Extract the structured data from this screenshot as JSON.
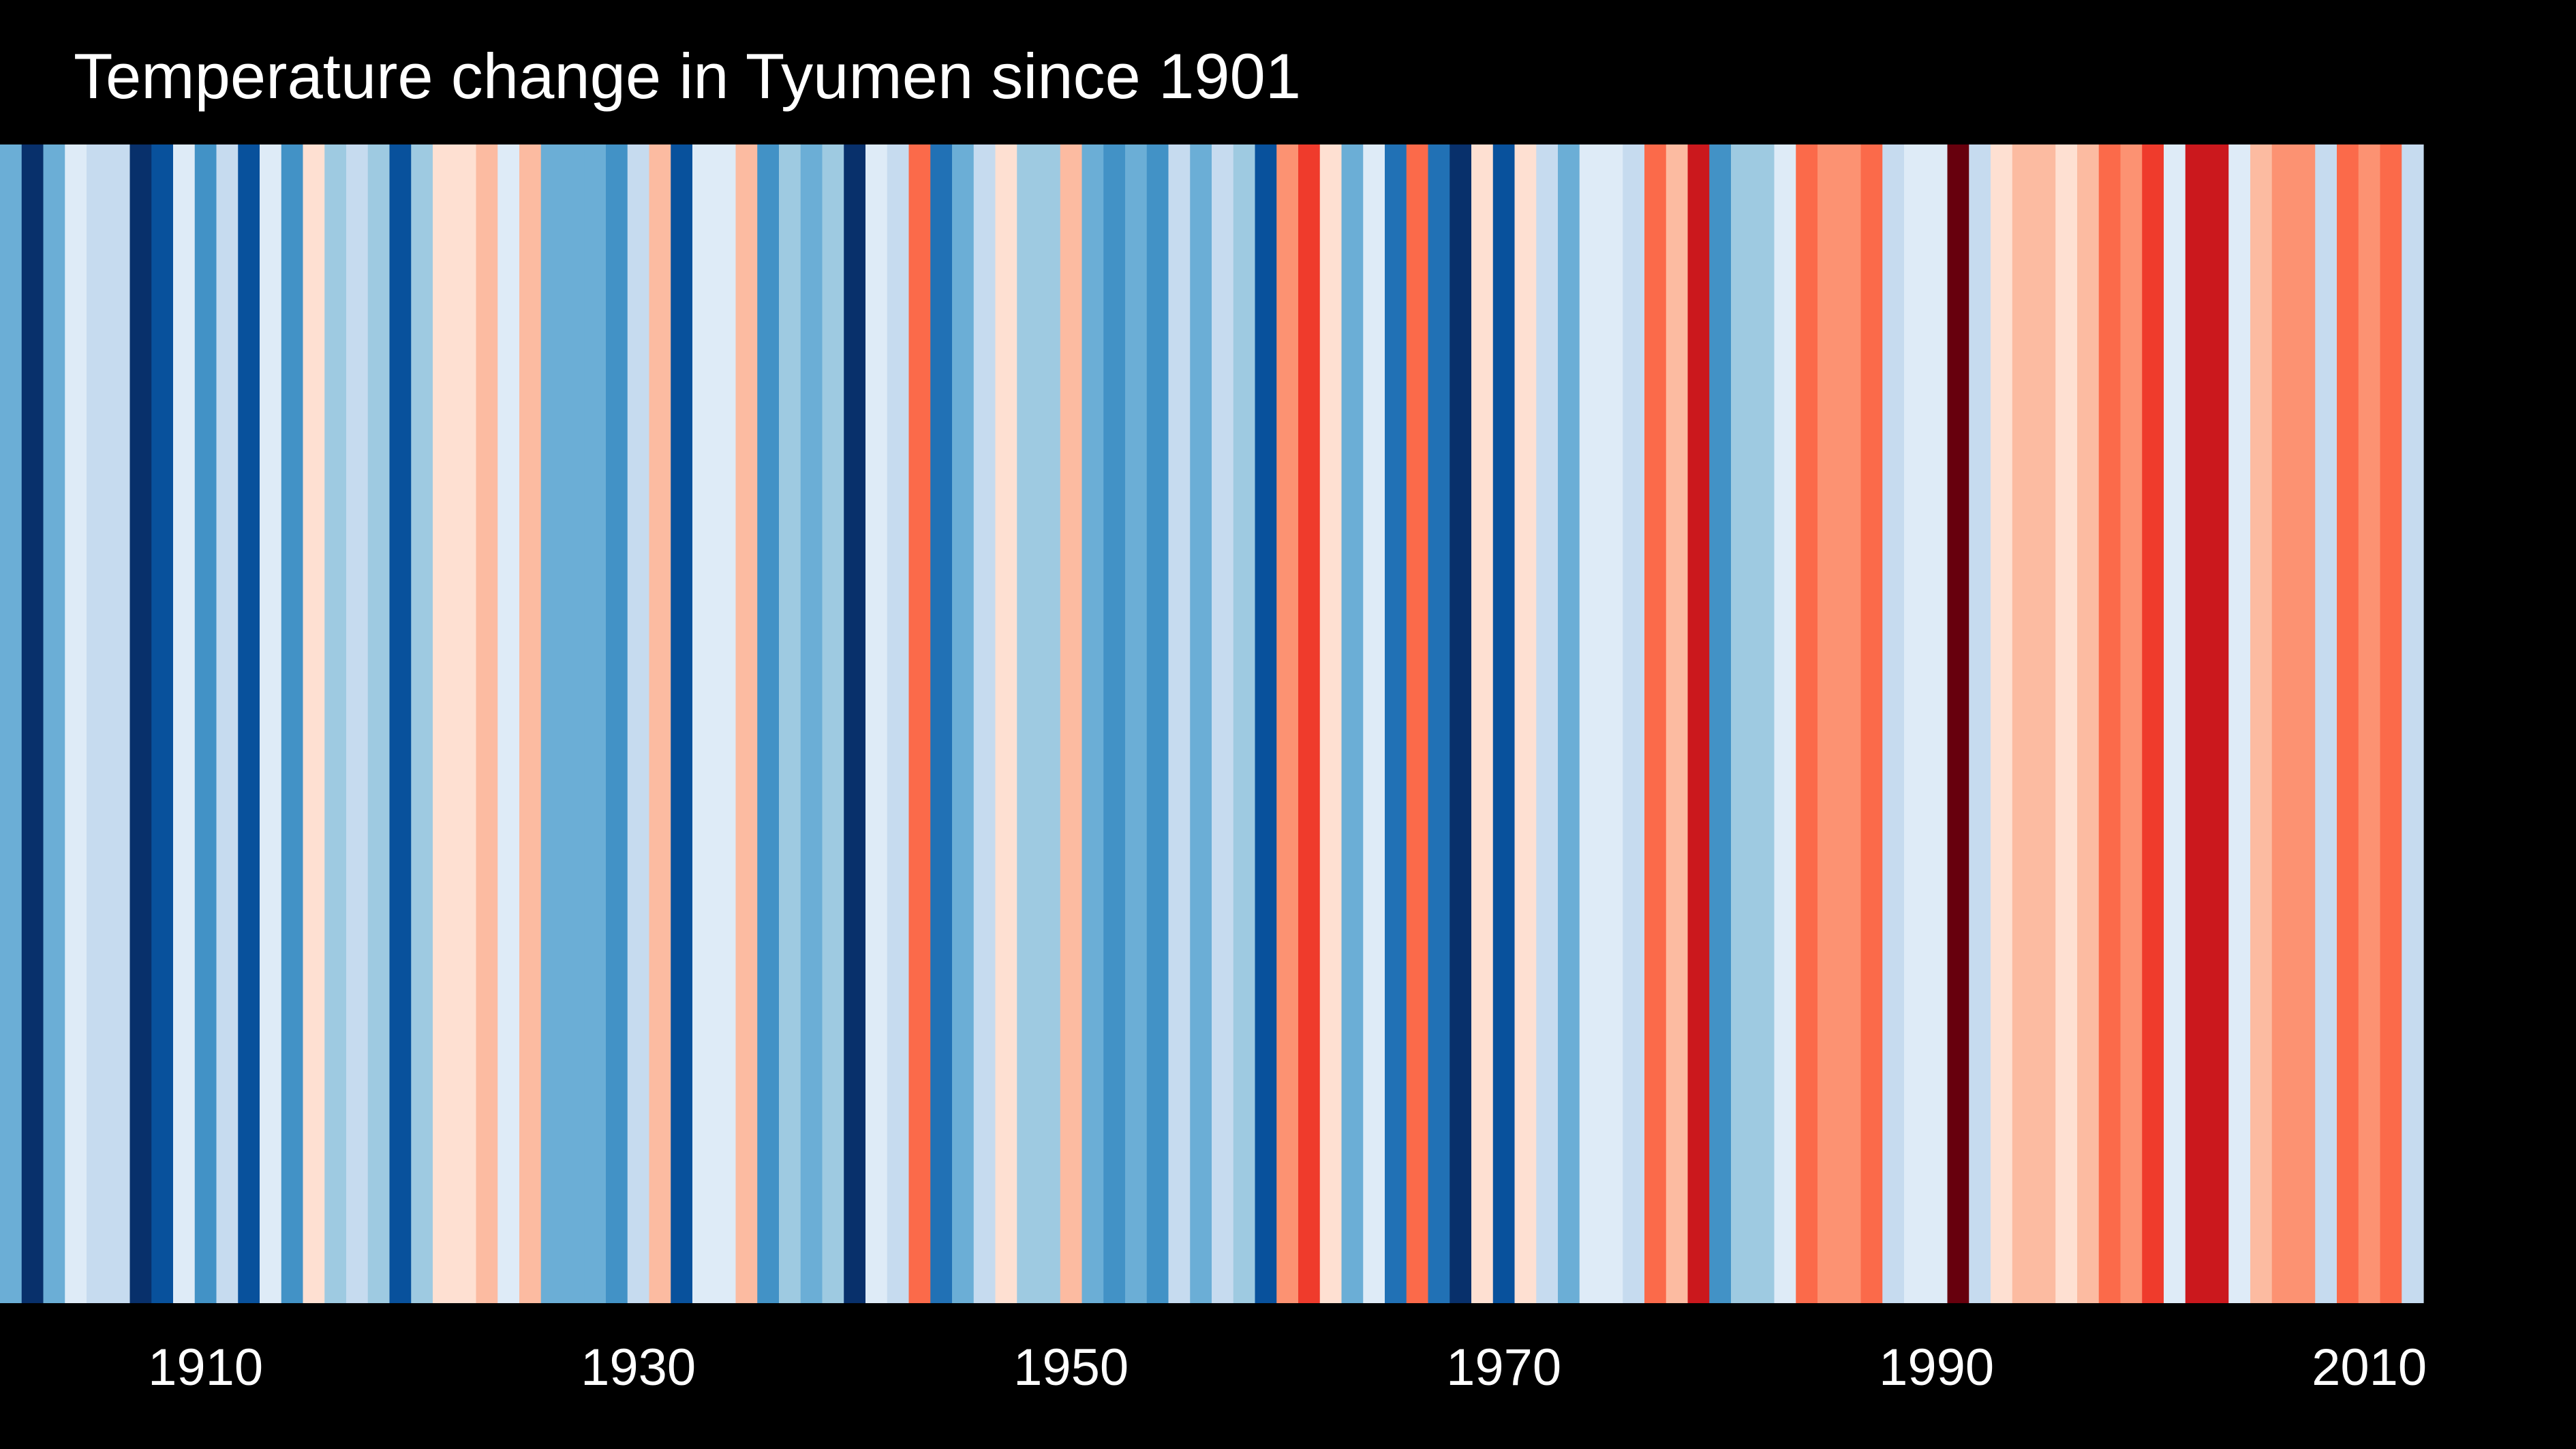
{
  "colors": {
    "background": "#000000",
    "text": "#ffffff"
  },
  "chart_data": {
    "type": "heatmap",
    "title": "Temperature change in Tyumen since 1901",
    "xlabel": "",
    "ylabel": "",
    "x_range": [
      1901,
      2019
    ],
    "x_ticks": [
      1910,
      1930,
      1950,
      1970,
      1990,
      2010
    ],
    "grid": false,
    "legend": "none",
    "stripes": [
      {
        "year": 1901,
        "color": "#6baed6"
      },
      {
        "year": 1902,
        "color": "#08306b"
      },
      {
        "year": 1903,
        "color": "#6baed6"
      },
      {
        "year": 1904,
        "color": "#deebf7"
      },
      {
        "year": 1905,
        "color": "#c6dbef"
      },
      {
        "year": 1906,
        "color": "#c6dbef"
      },
      {
        "year": 1907,
        "color": "#08306b"
      },
      {
        "year": 1908,
        "color": "#08519c"
      },
      {
        "year": 1909,
        "color": "#deebf7"
      },
      {
        "year": 1910,
        "color": "#4292c6"
      },
      {
        "year": 1911,
        "color": "#c6dbef"
      },
      {
        "year": 1912,
        "color": "#08519c"
      },
      {
        "year": 1913,
        "color": "#deebf7"
      },
      {
        "year": 1914,
        "color": "#4292c6"
      },
      {
        "year": 1915,
        "color": "#fee0d2"
      },
      {
        "year": 1916,
        "color": "#9ecae1"
      },
      {
        "year": 1917,
        "color": "#c6dbef"
      },
      {
        "year": 1918,
        "color": "#9ecae1"
      },
      {
        "year": 1919,
        "color": "#08519c"
      },
      {
        "year": 1920,
        "color": "#9ecae1"
      },
      {
        "year": 1921,
        "color": "#fee0d2"
      },
      {
        "year": 1922,
        "color": "#fee0d2"
      },
      {
        "year": 1923,
        "color": "#fcbba1"
      },
      {
        "year": 1924,
        "color": "#deebf7"
      },
      {
        "year": 1925,
        "color": "#fcbba1"
      },
      {
        "year": 1926,
        "color": "#6baed6"
      },
      {
        "year": 1927,
        "color": "#6baed6"
      },
      {
        "year": 1928,
        "color": "#6baed6"
      },
      {
        "year": 1929,
        "color": "#4292c6"
      },
      {
        "year": 1930,
        "color": "#c6dbef"
      },
      {
        "year": 1931,
        "color": "#fcbba1"
      },
      {
        "year": 1932,
        "color": "#08519c"
      },
      {
        "year": 1933,
        "color": "#deebf7"
      },
      {
        "year": 1934,
        "color": "#deebf7"
      },
      {
        "year": 1935,
        "color": "#fcbba1"
      },
      {
        "year": 1936,
        "color": "#4292c6"
      },
      {
        "year": 1937,
        "color": "#9ecae1"
      },
      {
        "year": 1938,
        "color": "#6baed6"
      },
      {
        "year": 1939,
        "color": "#9ecae1"
      },
      {
        "year": 1940,
        "color": "#08306b"
      },
      {
        "year": 1941,
        "color": "#deebf7"
      },
      {
        "year": 1942,
        "color": "#c6dbef"
      },
      {
        "year": 1943,
        "color": "#fb6a4a"
      },
      {
        "year": 1944,
        "color": "#2171b5"
      },
      {
        "year": 1945,
        "color": "#6baed6"
      },
      {
        "year": 1946,
        "color": "#c6dbef"
      },
      {
        "year": 1947,
        "color": "#fee0d2"
      },
      {
        "year": 1948,
        "color": "#9ecae1"
      },
      {
        "year": 1949,
        "color": "#9ecae1"
      },
      {
        "year": 1950,
        "color": "#fcbba1"
      },
      {
        "year": 1951,
        "color": "#6baed6"
      },
      {
        "year": 1952,
        "color": "#4292c6"
      },
      {
        "year": 1953,
        "color": "#6baed6"
      },
      {
        "year": 1954,
        "color": "#4292c6"
      },
      {
        "year": 1955,
        "color": "#c6dbef"
      },
      {
        "year": 1956,
        "color": "#6baed6"
      },
      {
        "year": 1957,
        "color": "#c6dbef"
      },
      {
        "year": 1958,
        "color": "#9ecae1"
      },
      {
        "year": 1959,
        "color": "#08519c"
      },
      {
        "year": 1960,
        "color": "#fc9272"
      },
      {
        "year": 1961,
        "color": "#ef3b2c"
      },
      {
        "year": 1962,
        "color": "#fee0d2"
      },
      {
        "year": 1963,
        "color": "#6baed6"
      },
      {
        "year": 1964,
        "color": "#deebf7"
      },
      {
        "year": 1965,
        "color": "#2171b5"
      },
      {
        "year": 1966,
        "color": "#fb6a4a"
      },
      {
        "year": 1967,
        "color": "#2171b5"
      },
      {
        "year": 1968,
        "color": "#08306b"
      },
      {
        "year": 1969,
        "color": "#fee0d2"
      },
      {
        "year": 1970,
        "color": "#08519c"
      },
      {
        "year": 1971,
        "color": "#fee0d2"
      },
      {
        "year": 1972,
        "color": "#c6dbef"
      },
      {
        "year": 1973,
        "color": "#6baed6"
      },
      {
        "year": 1974,
        "color": "#deebf7"
      },
      {
        "year": 1975,
        "color": "#deebf7"
      },
      {
        "year": 1976,
        "color": "#c6dbef"
      },
      {
        "year": 1977,
        "color": "#fb6a4a"
      },
      {
        "year": 1978,
        "color": "#fcbba1"
      },
      {
        "year": 1979,
        "color": "#cb181d"
      },
      {
        "year": 1980,
        "color": "#4292c6"
      },
      {
        "year": 1981,
        "color": "#9ecae1"
      },
      {
        "year": 1982,
        "color": "#9ecae1"
      },
      {
        "year": 1983,
        "color": "#deebf7"
      },
      {
        "year": 1984,
        "color": "#fb6a4a"
      },
      {
        "year": 1985,
        "color": "#fc9272"
      },
      {
        "year": 1986,
        "color": "#fc9272"
      },
      {
        "year": 1987,
        "color": "#fb6a4a"
      },
      {
        "year": 1988,
        "color": "#c6dbef"
      },
      {
        "year": 1989,
        "color": "#deebf7"
      },
      {
        "year": 1990,
        "color": "#deebf7"
      },
      {
        "year": 1991,
        "color": "#67000d"
      },
      {
        "year": 1992,
        "color": "#c6dbef"
      },
      {
        "year": 1993,
        "color": "#fee0d2"
      },
      {
        "year": 1994,
        "color": "#fcbba1"
      },
      {
        "year": 1995,
        "color": "#fcbba1"
      },
      {
        "year": 1996,
        "color": "#fee0d2"
      },
      {
        "year": 1997,
        "color": "#fcbba1"
      },
      {
        "year": 1998,
        "color": "#fb6a4a"
      },
      {
        "year": 1999,
        "color": "#fc9272"
      },
      {
        "year": 2000,
        "color": "#ef3b2c"
      },
      {
        "year": 2001,
        "color": "#deebf7"
      },
      {
        "year": 2002,
        "color": "#cb181d"
      },
      {
        "year": 2003,
        "color": "#cb181d"
      },
      {
        "year": 2004,
        "color": "#deebf7"
      },
      {
        "year": 2005,
        "color": "#fcbba1"
      },
      {
        "year": 2006,
        "color": "#fc9272"
      },
      {
        "year": 2007,
        "color": "#fc9272"
      },
      {
        "year": 2008,
        "color": "#c6dbef"
      },
      {
        "year": 2009,
        "color": "#fb6a4a"
      },
      {
        "year": 2010,
        "color": "#fc9272"
      },
      {
        "year": 2011,
        "color": "#fb6a4a"
      },
      {
        "year": 2012,
        "color": "#c6dbef"
      }
    ]
  }
}
